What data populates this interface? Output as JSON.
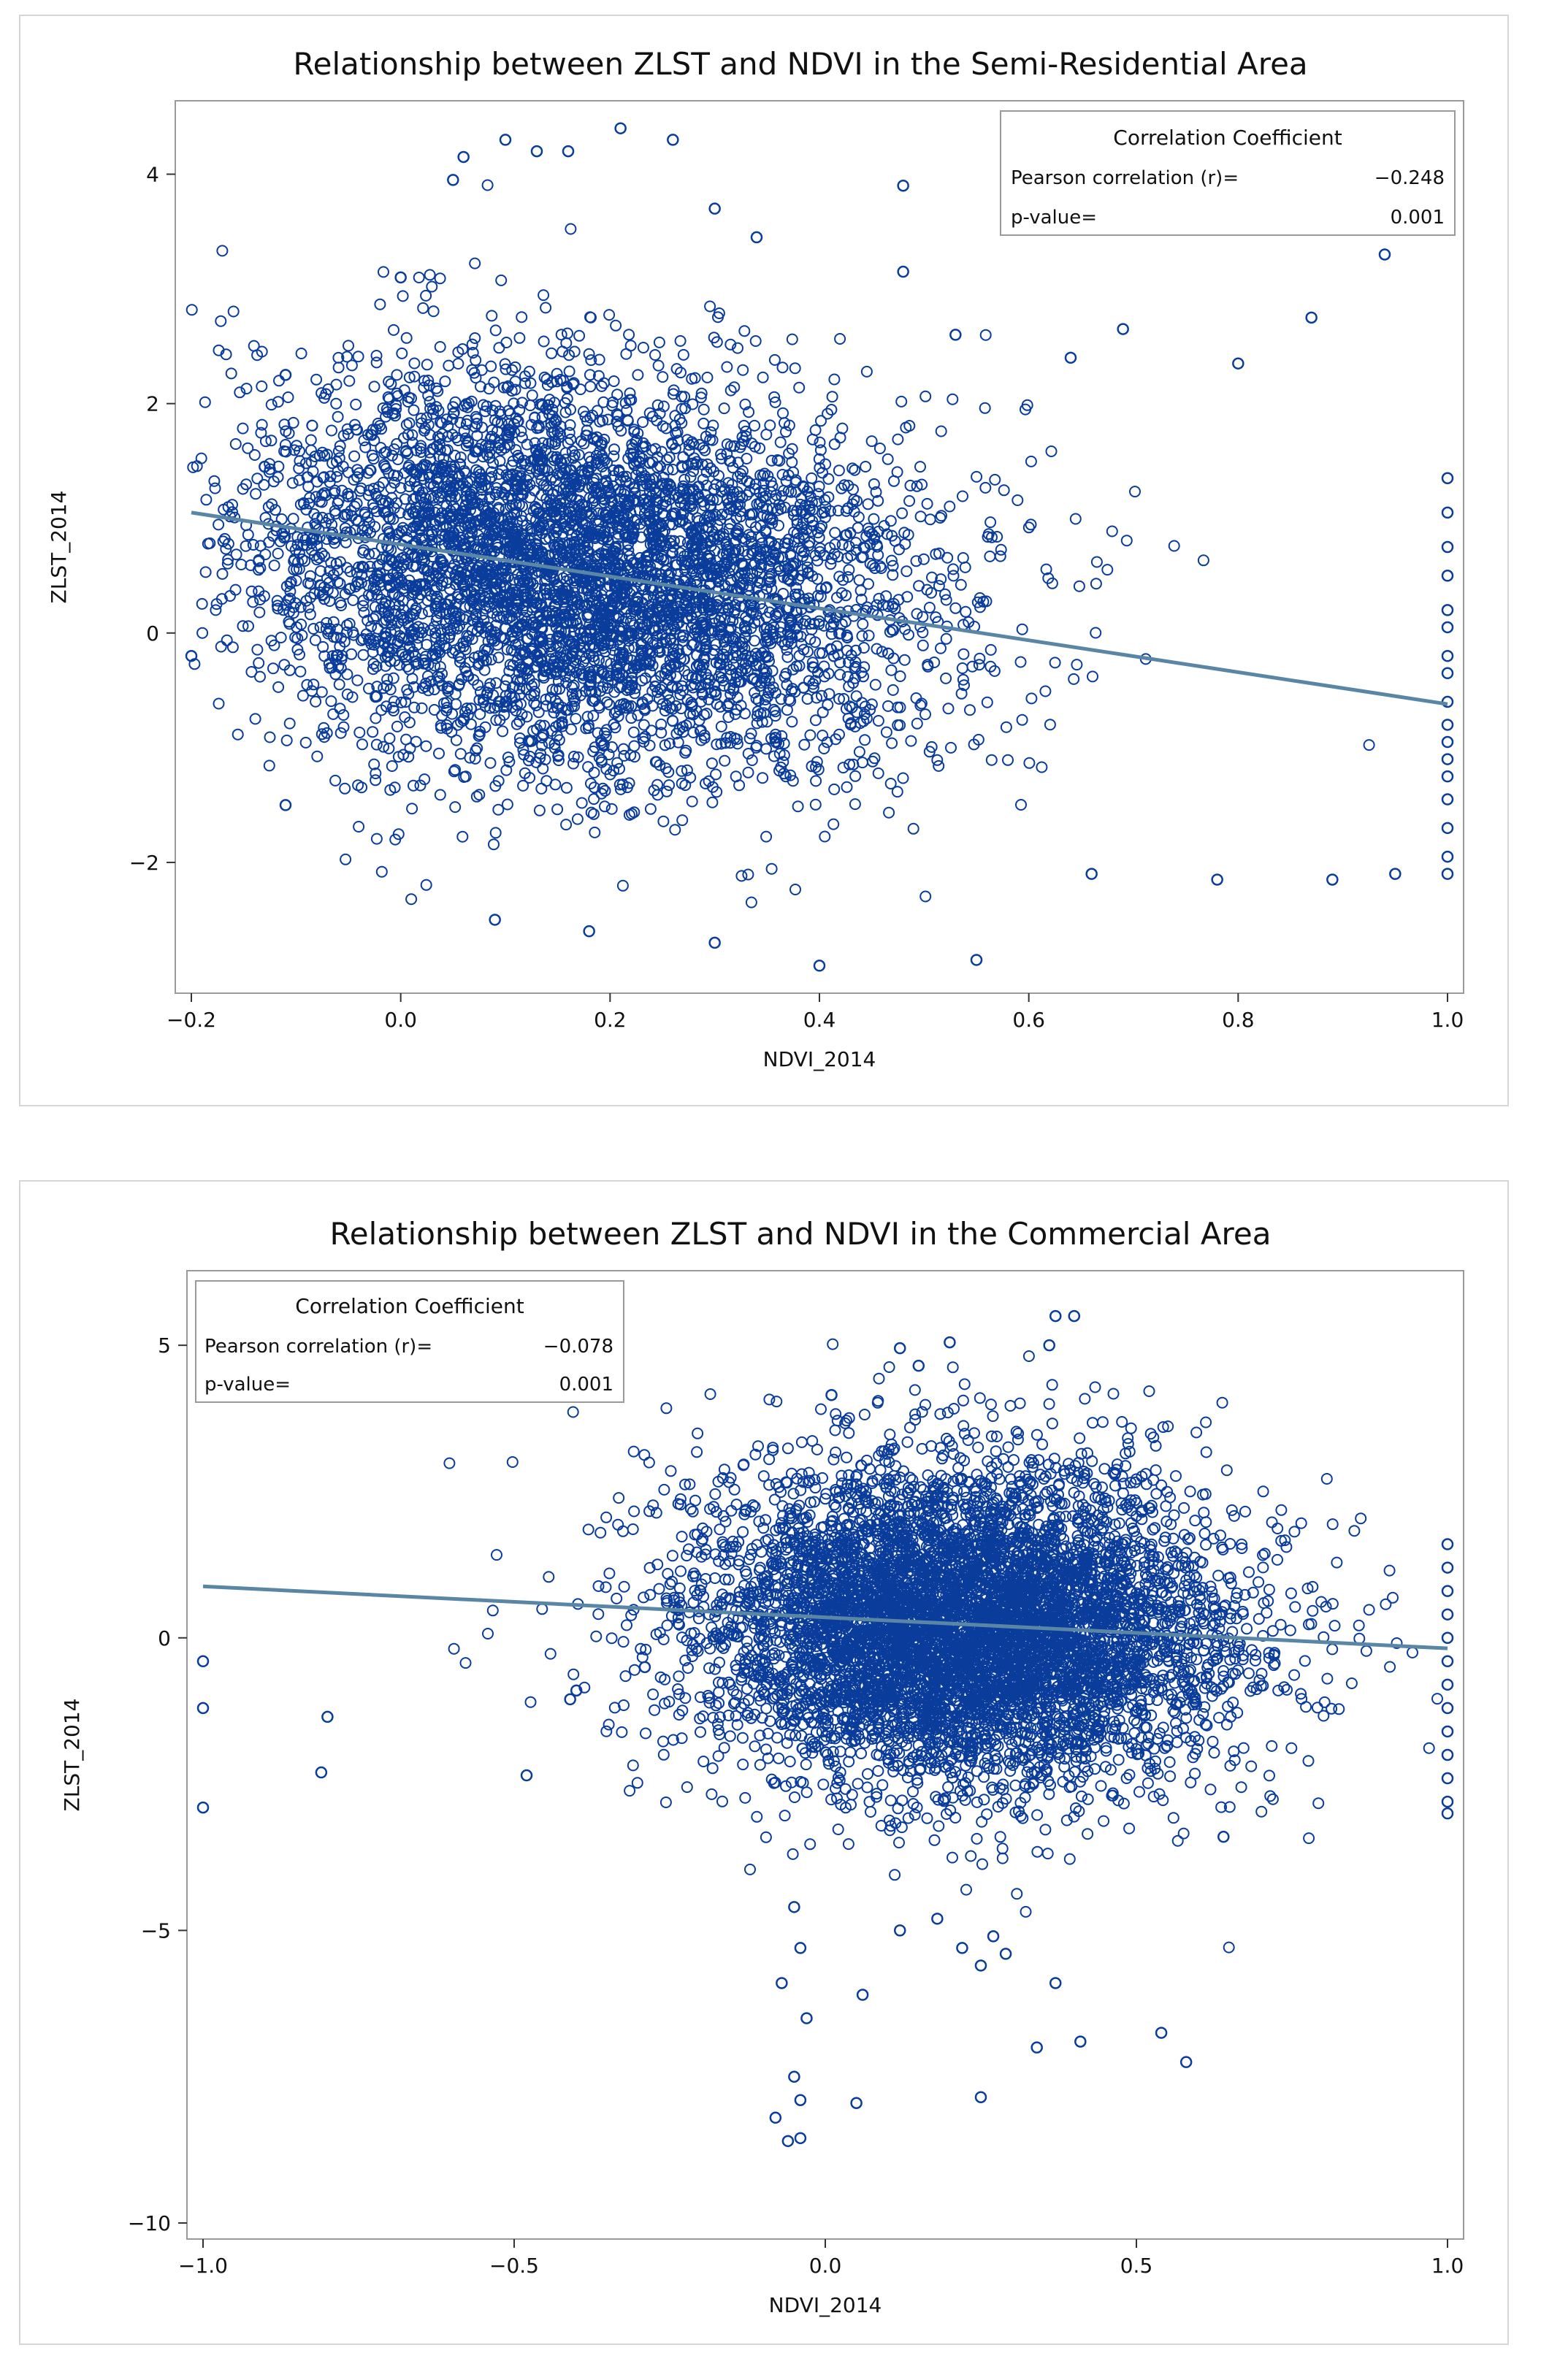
{
  "chart_data": [
    {
      "type": "scatter",
      "title": "Relationship between ZLST and NDVI in the Semi-Residential Area",
      "xlabel": "NDVI_2014",
      "ylabel": "ZLST_2014",
      "xlim": [
        -0.2,
        1.0
      ],
      "ylim": [
        -3.0,
        4.5
      ],
      "xticks": [
        -0.2,
        0.0,
        0.2,
        0.4,
        0.6,
        0.8,
        1.0
      ],
      "xtick_labels": [
        "−0.2",
        "0.0",
        "0.2",
        "0.4",
        "0.6",
        "0.8",
        "1.0"
      ],
      "yticks": [
        -2,
        0,
        2,
        4
      ],
      "ytick_labels": [
        "−2",
        "0",
        "2",
        "4"
      ],
      "marker": "open-circle",
      "marker_color": "#0a3c9c",
      "fit_line_color": "#5a86a6",
      "fit_line": {
        "x": [
          -0.2,
          1.0
        ],
        "y": [
          1.05,
          -0.62
        ]
      },
      "cluster": {
        "x_mean": 0.17,
        "x_sd": 0.14,
        "y_mean": 0.55,
        "y_sd": 0.85,
        "n": 5200
      },
      "legend": {
        "position": "top-right",
        "heading": "Correlation Coefficient",
        "rows": [
          {
            "label": "Pearson correlation (r)=",
            "value": "−0.248"
          },
          {
            "label": "p-value=",
            "value": "0.001"
          }
        ]
      },
      "outliers": [
        {
          "x": -0.2,
          "y": -0.2
        },
        {
          "x": -0.11,
          "y": 2.25
        },
        {
          "x": -0.13,
          "y": 1.45
        },
        {
          "x": -0.11,
          "y": -1.5
        },
        {
          "x": 0.05,
          "y": 3.95
        },
        {
          "x": 0.06,
          "y": 4.15
        },
        {
          "x": 0.1,
          "y": 4.3
        },
        {
          "x": 0.13,
          "y": 4.2
        },
        {
          "x": 0.16,
          "y": 4.2
        },
        {
          "x": 0.21,
          "y": 4.4
        },
        {
          "x": 0.26,
          "y": 4.3
        },
        {
          "x": 0.3,
          "y": 3.7
        },
        {
          "x": 0.34,
          "y": 3.45
        },
        {
          "x": 0.48,
          "y": 3.9
        },
        {
          "x": 0.48,
          "y": 3.15
        },
        {
          "x": 0.94,
          "y": 3.3
        },
        {
          "x": 0.87,
          "y": 2.75
        },
        {
          "x": 0.69,
          "y": 2.65
        },
        {
          "x": 0.8,
          "y": 2.35
        },
        {
          "x": 0.53,
          "y": 2.6
        },
        {
          "x": 0.64,
          "y": 2.4
        },
        {
          "x": 0.0,
          "y": 3.1
        },
        {
          "x": 0.4,
          "y": -2.9
        },
        {
          "x": 0.55,
          "y": -2.85
        },
        {
          "x": 0.3,
          "y": -2.7
        },
        {
          "x": 0.09,
          "y": -2.5
        },
        {
          "x": 0.18,
          "y": -2.6
        },
        {
          "x": 0.66,
          "y": -2.1
        },
        {
          "x": 0.78,
          "y": -2.15
        },
        {
          "x": 0.89,
          "y": -2.15
        },
        {
          "x": 0.95,
          "y": -2.1
        }
      ],
      "edge_points": [
        {
          "x": 1.0,
          "y": 1.35
        },
        {
          "x": 1.0,
          "y": 1.05
        },
        {
          "x": 1.0,
          "y": 0.75
        },
        {
          "x": 1.0,
          "y": 0.5
        },
        {
          "x": 1.0,
          "y": 0.2
        },
        {
          "x": 1.0,
          "y": 0.05
        },
        {
          "x": 1.0,
          "y": -0.2
        },
        {
          "x": 1.0,
          "y": -0.35
        },
        {
          "x": 1.0,
          "y": -0.6
        },
        {
          "x": 1.0,
          "y": -0.8
        },
        {
          "x": 1.0,
          "y": -0.95
        },
        {
          "x": 1.0,
          "y": -1.1
        },
        {
          "x": 1.0,
          "y": -1.25
        },
        {
          "x": 1.0,
          "y": -1.45
        },
        {
          "x": 1.0,
          "y": -1.7
        },
        {
          "x": 1.0,
          "y": -1.95
        },
        {
          "x": 1.0,
          "y": -2.1
        }
      ]
    },
    {
      "type": "scatter",
      "title": "Relationship between ZLST and NDVI in the Commercial Area",
      "xlabel": "NDVI_2014",
      "ylabel": "ZLST_2014",
      "xlim": [
        -1.0,
        1.0
      ],
      "ylim": [
        -10.0,
        6.0
      ],
      "xticks": [
        -1.0,
        -0.5,
        0.0,
        0.5,
        1.0
      ],
      "xtick_labels": [
        "−1.0",
        "−0.5",
        "0.0",
        "0.5",
        "1.0"
      ],
      "yticks": [
        -10,
        -5,
        0,
        5
      ],
      "ytick_labels": [
        "−10",
        "−5",
        "0",
        "5"
      ],
      "marker": "open-circle",
      "marker_color": "#0a3c9c",
      "fit_line_color": "#5a86a6",
      "fit_line": {
        "x": [
          -1.0,
          1.0
        ],
        "y": [
          0.88,
          -0.18
        ]
      },
      "cluster": {
        "x_mean": 0.22,
        "x_sd": 0.18,
        "y_mean": 0.2,
        "y_sd": 1.35,
        "n": 6500
      },
      "legend": {
        "position": "top-left",
        "heading": "Correlation Coefficient",
        "rows": [
          {
            "label": "Pearson correlation (r)=",
            "value": "−0.078"
          },
          {
            "label": "p-value=",
            "value": "0.001"
          }
        ]
      },
      "outliers": [
        {
          "x": -1.0,
          "y": -0.4
        },
        {
          "x": -1.0,
          "y": -1.2
        },
        {
          "x": -1.0,
          "y": -2.9
        },
        {
          "x": -0.8,
          "y": -1.35
        },
        {
          "x": -0.81,
          "y": -2.3
        },
        {
          "x": -0.48,
          "y": -2.35
        },
        {
          "x": -0.4,
          "y": -0.9
        },
        {
          "x": -0.41,
          "y": -1.05
        },
        {
          "x": -0.29,
          "y": -0.5
        },
        {
          "x": -0.08,
          "y": -8.2
        },
        {
          "x": -0.06,
          "y": -8.6
        },
        {
          "x": -0.04,
          "y": -8.55
        },
        {
          "x": -0.05,
          "y": -7.5
        },
        {
          "x": -0.04,
          "y": -7.9
        },
        {
          "x": -0.03,
          "y": -6.5
        },
        {
          "x": -0.07,
          "y": -5.9
        },
        {
          "x": -0.05,
          "y": -4.6
        },
        {
          "x": -0.04,
          "y": -5.3
        },
        {
          "x": 0.06,
          "y": -6.1
        },
        {
          "x": 0.05,
          "y": -7.95
        },
        {
          "x": 0.12,
          "y": -5.0
        },
        {
          "x": 0.18,
          "y": -4.8
        },
        {
          "x": 0.22,
          "y": -5.3
        },
        {
          "x": 0.25,
          "y": -5.6
        },
        {
          "x": 0.25,
          "y": -7.85
        },
        {
          "x": 0.27,
          "y": -5.1
        },
        {
          "x": 0.29,
          "y": -5.4
        },
        {
          "x": 0.34,
          "y": -7.0
        },
        {
          "x": 0.37,
          "y": -5.9
        },
        {
          "x": 0.41,
          "y": -6.9
        },
        {
          "x": 0.54,
          "y": -6.75
        },
        {
          "x": 0.58,
          "y": -7.25
        },
        {
          "x": 0.37,
          "y": 5.5
        },
        {
          "x": 0.4,
          "y": 5.5
        },
        {
          "x": 0.36,
          "y": 5.0
        },
        {
          "x": 0.2,
          "y": 5.05
        },
        {
          "x": 0.12,
          "y": 4.95
        },
        {
          "x": 0.15,
          "y": 4.65
        },
        {
          "x": 0.01,
          "y": 4.15
        },
        {
          "x": 0.64,
          "y": -3.4
        }
      ],
      "edge_points": [
        {
          "x": 1.0,
          "y": 1.6
        },
        {
          "x": 1.0,
          "y": 1.2
        },
        {
          "x": 1.0,
          "y": 0.8
        },
        {
          "x": 1.0,
          "y": 0.4
        },
        {
          "x": 1.0,
          "y": 0.0
        },
        {
          "x": 1.0,
          "y": -0.4
        },
        {
          "x": 1.0,
          "y": -0.8
        },
        {
          "x": 1.0,
          "y": -1.2
        },
        {
          "x": 1.0,
          "y": -1.6
        },
        {
          "x": 1.0,
          "y": -2.0
        },
        {
          "x": 1.0,
          "y": -2.4
        },
        {
          "x": 1.0,
          "y": -2.8
        },
        {
          "x": 1.0,
          "y": -3.0
        }
      ]
    }
  ]
}
